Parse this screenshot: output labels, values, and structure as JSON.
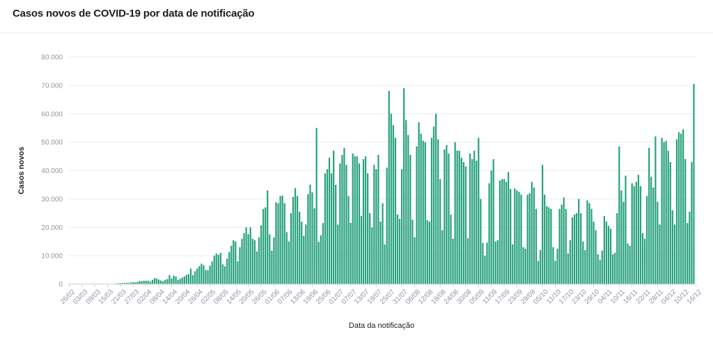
{
  "title": "Casos novos de COVID-19 por data de notificação",
  "colors": {
    "bar": "#26a17b",
    "grid": "#e9ecef",
    "axis_text": "#8f96a3"
  },
  "chart_data": {
    "type": "bar",
    "title": "Casos novos de COVID-19 por data de notificação",
    "xlabel": "Data da notificação",
    "ylabel": "Casos novos",
    "ylim": [
      0,
      80000
    ],
    "y_ticks": [
      0,
      10000,
      20000,
      30000,
      40000,
      50000,
      60000,
      70000,
      80000
    ],
    "y_tick_labels": [
      "0",
      "10.000",
      "20.000",
      "30.000",
      "40.000",
      "50.000",
      "60.000",
      "70.000",
      "80.000"
    ],
    "x_tick_labels": [
      "26/02",
      "03/03",
      "09/03",
      "15/03",
      "21/03",
      "27/03",
      "02/04",
      "08/04",
      "14/04",
      "20/04",
      "26/04",
      "02/05",
      "08/05",
      "14/05",
      "20/05",
      "26/05",
      "01/06",
      "07/06",
      "13/06",
      "19/06",
      "25/06",
      "01/07",
      "07/07",
      "13/07",
      "19/07",
      "25/07",
      "31/07",
      "06/08",
      "12/08",
      "18/08",
      "24/08",
      "30/08",
      "05/09",
      "11/09",
      "17/09",
      "23/09",
      "29/09",
      "05/10",
      "11/10",
      "17/10",
      "23/10",
      "29/10",
      "04/11",
      "10/11",
      "16/11",
      "22/11",
      "28/11",
      "04/12",
      "10/12",
      "16/12"
    ],
    "x_tick_every": 6,
    "grid": true,
    "values": [
      0,
      0,
      0,
      0,
      0,
      0,
      0,
      0,
      0,
      0,
      0,
      0,
      0,
      0,
      0,
      0,
      0,
      0,
      0,
      0,
      50,
      100,
      200,
      300,
      300,
      400,
      400,
      500,
      400,
      600,
      700,
      600,
      800,
      1100,
      1000,
      1200,
      1200,
      1200,
      900,
      1500,
      2100,
      2000,
      1600,
      1300,
      1000,
      1500,
      1800,
      3200,
      2000,
      3000,
      2700,
      1500,
      1900,
      2300,
      2700,
      3300,
      3500,
      5500,
      3200,
      4500,
      5500,
      6300,
      7200,
      6700,
      5000,
      4900,
      6500,
      8000,
      10000,
      10800,
      10300,
      11000,
      7000,
      6300,
      9000,
      11300,
      13500,
      15500,
      15000,
      8000,
      13000,
      16000,
      18000,
      20000,
      17600,
      20000,
      16000,
      15500,
      11500,
      16500,
      20700,
      26500,
      27000,
      33000,
      17500,
      11800,
      16500,
      28800,
      28500,
      31000,
      31200,
      28500,
      18300,
      15000,
      25000,
      30700,
      33800,
      31000,
      25500,
      22000,
      17000,
      21000,
      31700,
      35000,
      32300,
      26700,
      55000,
      14900,
      17200,
      21500,
      39000,
      40500,
      44500,
      39000,
      47000,
      35000,
      21000,
      42500,
      45500,
      48000,
      42000,
      31000,
      21600,
      46000,
      45000,
      45000,
      42500,
      24000,
      44000,
      45000,
      39000,
      25000,
      20000,
      42000,
      40500,
      45500,
      22000,
      28500,
      14000,
      41000,
      68000,
      60000,
      56000,
      51500,
      24500,
      23000,
      40500,
      69000,
      57800,
      52500,
      45500,
      22700,
      16500,
      48500,
      57000,
      53000,
      50500,
      50000,
      22500,
      22000,
      51500,
      55500,
      60000,
      51000,
      37000,
      19000,
      47500,
      49000,
      46000,
      24500,
      16000,
      50000,
      47000,
      47000,
      44500,
      43000,
      41500,
      16200,
      46000,
      44000,
      47000,
      43500,
      51500,
      30000,
      14500,
      10000,
      14600,
      35500,
      40000,
      44000,
      15000,
      15500,
      36500,
      37000,
      37000,
      36000,
      39500,
      33500,
      14000,
      33700,
      33000,
      32500,
      31500,
      13000,
      12500,
      31500,
      32000,
      36000,
      34000,
      26500,
      8200,
      12000,
      42000,
      31500,
      27500,
      27000,
      26500,
      13000,
      8200,
      12500,
      26500,
      28000,
      30500,
      26500,
      10800,
      15500,
      23500,
      24500,
      25000,
      30000,
      25000,
      15000,
      12000,
      29500,
      28500,
      26500,
      22000,
      19000,
      10500,
      8500,
      11800,
      24000,
      22000,
      20500,
      19500,
      10500,
      11000,
      25000,
      48500,
      33000,
      29000,
      38200,
      14300,
      13500,
      35500,
      34500,
      36000,
      38500,
      34500,
      18000,
      16000,
      31000,
      48000,
      37800,
      34000,
      52000,
      29000,
      21000,
      51500,
      50000,
      50500,
      47000,
      43000,
      26000,
      21000,
      51000,
      53500,
      53000,
      54500,
      44000,
      21500,
      25500,
      43000,
      70500
    ]
  }
}
